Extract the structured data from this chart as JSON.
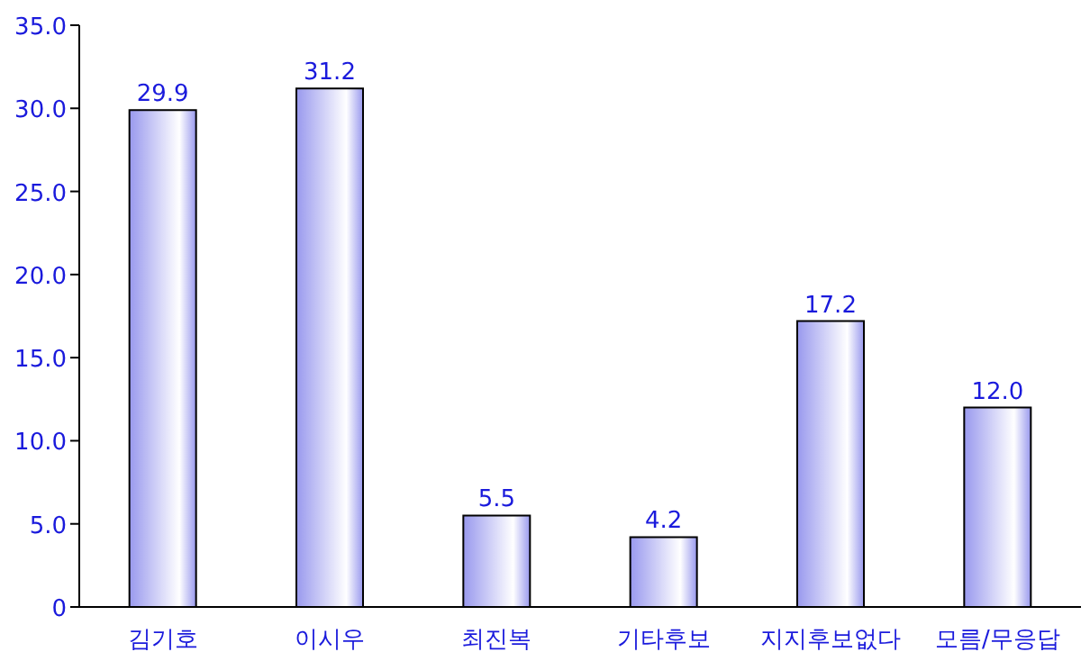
{
  "chart_data": {
    "type": "bar",
    "categories": [
      "김기호",
      "이시우",
      "최진복",
      "기타후보",
      "지지후보없다",
      "모름/무응답"
    ],
    "values": [
      29.9,
      31.2,
      5.5,
      4.2,
      17.2,
      12.0
    ],
    "value_labels": [
      "29.9",
      "31.2",
      "5.5",
      "4.2",
      "17.2",
      "12.0"
    ],
    "color": "#9999ee",
    "ylim": [
      0,
      35
    ],
    "yticks": [
      0,
      {
        "value": 5,
        "label": "5.0"
      },
      {
        "value": 10,
        "label": "10.0"
      },
      {
        "value": 15,
        "label": "15.0"
      },
      {
        "value": 20,
        "label": "20.0"
      },
      {
        "value": 25,
        "label": "25.0"
      },
      {
        "value": 30,
        "label": "30.0"
      },
      {
        "value": 35,
        "label": "35.0"
      }
    ],
    "grid": false
  }
}
